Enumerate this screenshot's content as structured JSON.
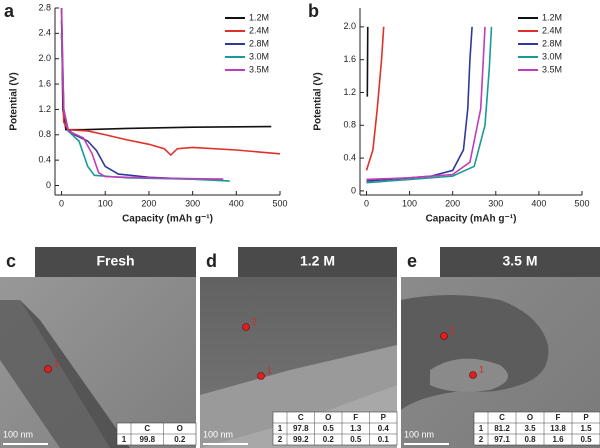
{
  "chart_data": [
    {
      "type": "line",
      "label": "a",
      "ylabel": "Potential (V)",
      "xlabel": "Capacity (mAh g⁻¹)",
      "xlim": [
        -15,
        500
      ],
      "xticks": [
        0,
        100,
        200,
        300,
        400,
        500
      ],
      "ylim": [
        -0.15,
        2.8
      ],
      "yticks": [
        0,
        0.4,
        0.8,
        1.2,
        1.6,
        {
          "value": 2,
          "label": "2.0"
        },
        2.4,
        2.8
      ],
      "legend": "upper right",
      "series": [
        {
          "name": "1.2M",
          "color": "#111111",
          "x": [
            0,
            3,
            10,
            50,
            150,
            300,
            480
          ],
          "values": [
            2.8,
            1.2,
            0.88,
            0.88,
            0.9,
            0.92,
            0.93
          ]
        },
        {
          "name": "2.4M",
          "color": "#e0302a",
          "x": [
            0,
            5,
            15,
            60,
            100,
            150,
            200,
            235,
            250,
            265,
            300,
            400,
            500
          ],
          "values": [
            2.4,
            1.0,
            0.88,
            0.86,
            0.8,
            0.72,
            0.65,
            0.58,
            0.48,
            0.58,
            0.6,
            0.56,
            0.5
          ]
        },
        {
          "name": "2.8M",
          "color": "#2e3a9a",
          "x": [
            0,
            5,
            15,
            30,
            60,
            80,
            100,
            130,
            200,
            300,
            370
          ],
          "values": [
            2.6,
            1.2,
            0.88,
            0.8,
            0.7,
            0.55,
            0.3,
            0.18,
            0.13,
            0.1,
            0.1
          ]
        },
        {
          "name": "3.0M",
          "color": "#1a9a96",
          "x": [
            0,
            5,
            15,
            40,
            60,
            75,
            150,
            300,
            385
          ],
          "values": [
            2.4,
            1.2,
            0.86,
            0.7,
            0.3,
            0.16,
            0.12,
            0.1,
            0.07
          ]
        },
        {
          "name": "3.5M",
          "color": "#c03cb8",
          "x": [
            0,
            5,
            15,
            50,
            70,
            85,
            100,
            200,
            370
          ],
          "values": [
            2.8,
            1.2,
            0.86,
            0.75,
            0.5,
            0.2,
            0.14,
            0.12,
            0.1
          ]
        }
      ]
    },
    {
      "type": "line",
      "label": "b",
      "ylabel": "Potential (V)",
      "xlabel": "Capacity (mAh g⁻¹)",
      "xlim": [
        -15,
        500
      ],
      "xticks": [
        0,
        100,
        200,
        300,
        400,
        500
      ],
      "ylim": [
        -0.05,
        2.23
      ],
      "yticks": [
        0,
        0.4,
        0.8,
        1.2,
        1.6,
        {
          "value": 2,
          "label": "2.0"
        }
      ],
      "legend": "upper right",
      "series": [
        {
          "name": "1.2M",
          "color": "#111111",
          "x": [
            2,
            3
          ],
          "values": [
            1.15,
            2.0
          ]
        },
        {
          "name": "2.4M",
          "color": "#e0302a",
          "x": [
            0,
            15,
            25,
            35,
            40
          ],
          "values": [
            0.25,
            0.5,
            1.0,
            1.6,
            2.0
          ]
        },
        {
          "name": "2.8M",
          "color": "#2e3a9a",
          "x": [
            0,
            50,
            100,
            150,
            200,
            225,
            235,
            240,
            245
          ],
          "values": [
            0.12,
            0.14,
            0.16,
            0.18,
            0.25,
            0.5,
            1.0,
            1.6,
            2.0
          ]
        },
        {
          "name": "3.0M",
          "color": "#1a9a96",
          "x": [
            0,
            100,
            200,
            250,
            275,
            285,
            290
          ],
          "values": [
            0.1,
            0.14,
            0.18,
            0.3,
            0.8,
            1.5,
            2.0
          ]
        },
        {
          "name": "3.5M",
          "color": "#c03cb8",
          "x": [
            0,
            100,
            200,
            240,
            265,
            275
          ],
          "values": [
            0.14,
            0.16,
            0.2,
            0.35,
            1.0,
            2.0
          ]
        }
      ]
    }
  ],
  "panels": [
    {
      "label": "c",
      "title": "Fresh",
      "scale_bar": "100 nm",
      "points": [
        "1"
      ],
      "table": {
        "headers": [
          "C",
          "O"
        ],
        "rows": [
          [
            "1",
            "99.8",
            "0.2"
          ]
        ]
      }
    },
    {
      "label": "d",
      "title": "1.2 M",
      "scale_bar": "100 nm",
      "points": [
        "1",
        "2"
      ],
      "table": {
        "headers": [
          "C",
          "O",
          "F",
          "P"
        ],
        "rows": [
          [
            "1",
            "97.8",
            "0.5",
            "1.3",
            "0.4"
          ],
          [
            "2",
            "99.2",
            "0.2",
            "0.5",
            "0.1"
          ]
        ]
      }
    },
    {
      "label": "e",
      "title": "3.5 M",
      "scale_bar": "100 nm",
      "points": [
        "1",
        "2"
      ],
      "table": {
        "headers": [
          "C",
          "O",
          "F",
          "P"
        ],
        "rows": [
          [
            "1",
            "81.2",
            "3.5",
            "13.8",
            "1.5"
          ],
          [
            "2",
            "97.1",
            "0.8",
            "1.6",
            "0.5"
          ]
        ]
      }
    }
  ]
}
